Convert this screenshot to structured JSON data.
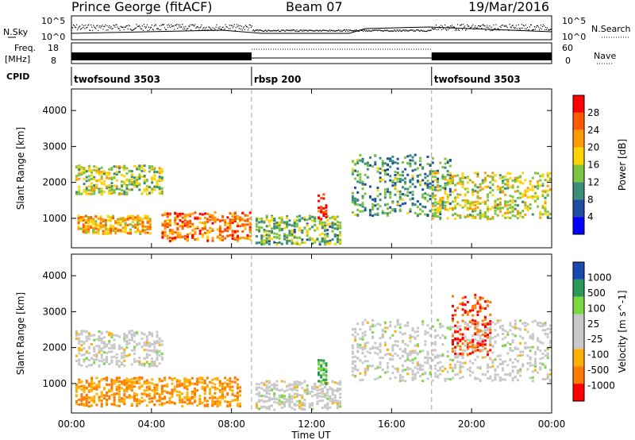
{
  "header": {
    "station": "Prince George (fitACF)",
    "beam": "Beam 07",
    "date": "19/Mar/2016"
  },
  "sky_panel": {
    "left_label": "N.Sky",
    "left_ticks": [
      "10^5",
      "10^0"
    ],
    "right_label": "N.Search",
    "right_ticks": [
      "10^5",
      "10^0"
    ]
  },
  "freq_panel": {
    "left_label_line1": "Freq.",
    "left_label_line2": "[MHz]",
    "left_ticks": [
      "18",
      "8"
    ],
    "right_label": "Nave",
    "right_ticks": [
      "60",
      "0"
    ]
  },
  "cpid_panel": {
    "label": "CPID",
    "segments": [
      {
        "name": "twofsound 3503",
        "start_hour": 0,
        "end_hour": 9
      },
      {
        "name": "rbsp 200",
        "start_hour": 9,
        "end_hour": 18
      },
      {
        "name": "twofsound 3503",
        "start_hour": 18,
        "end_hour": 24
      }
    ]
  },
  "colors": {
    "power_scale": [
      "#0000ff",
      "#1e4fa0",
      "#3a8e7a",
      "#7cc440",
      "#ffd400",
      "#ff9a00",
      "#ff5a00",
      "#ff0000"
    ],
    "velocity_scale": [
      "#ff0000",
      "#ff7a00",
      "#ffb000",
      "#c8c8c8",
      "#c8c8c8",
      "#7ad840",
      "#2a9a5a",
      "#1a4ab0"
    ],
    "divider": "#a0a0a0"
  },
  "chart_data": [
    {
      "type": "heatmap",
      "title": "",
      "xlabel": "",
      "ylabel": "Slant Range [km]",
      "xlim": [
        0,
        24
      ],
      "ylim": [
        180,
        4600
      ],
      "x_ticks": [
        "00:00",
        "04:00",
        "08:00",
        "12:00",
        "16:00",
        "20:00",
        "00:00"
      ],
      "y_ticks": [
        1000,
        2000,
        3000,
        4000
      ],
      "colorbar": {
        "label": "Power [dB]",
        "ticks": [
          4,
          8,
          12,
          16,
          20,
          24,
          28
        ],
        "range": [
          0,
          30
        ]
      },
      "features": [
        {
          "start_hour": 0.2,
          "end_hour": 4.6,
          "range_start_km": 1700,
          "range_end_km": 2500,
          "power_db": 15
        },
        {
          "start_hour": 0.3,
          "end_hour": 4.0,
          "range_start_km": 600,
          "range_end_km": 1100,
          "power_db": 20
        },
        {
          "start_hour": 4.5,
          "end_hour": 9.0,
          "range_start_km": 400,
          "range_end_km": 1200,
          "power_db": 24
        },
        {
          "start_hour": 9.2,
          "end_hour": 13.5,
          "range_start_km": 300,
          "range_end_km": 1100,
          "power_db": 12
        },
        {
          "start_hour": 12.3,
          "end_hour": 12.8,
          "range_start_km": 1000,
          "range_end_km": 1700,
          "power_db": 28
        },
        {
          "start_hour": 14.0,
          "end_hour": 19.0,
          "range_start_km": 1100,
          "range_end_km": 2800,
          "power_db": 10
        },
        {
          "start_hour": 18.0,
          "end_hour": 24.0,
          "range_start_km": 1000,
          "range_end_km": 2300,
          "power_db": 16
        }
      ]
    },
    {
      "type": "heatmap",
      "title": "",
      "xlabel": "Time UT",
      "ylabel": "Slant Range [km]",
      "xlim": [
        0,
        24
      ],
      "ylim": [
        180,
        4600
      ],
      "x_ticks": [
        "00:00",
        "04:00",
        "08:00",
        "12:00",
        "16:00",
        "20:00",
        "00:00"
      ],
      "y_ticks": [
        1000,
        2000,
        3000,
        4000
      ],
      "colorbar": {
        "label": "Velocity [m s^-1]",
        "ticks": [
          -1000,
          -500,
          -100,
          -25,
          25,
          100,
          500,
          1000
        ]
      },
      "features": [
        {
          "start_hour": 0.2,
          "end_hour": 4.6,
          "range_start_km": 1500,
          "range_end_km": 2500,
          "velocity": 0
        },
        {
          "start_hour": 0.2,
          "end_hour": 8.5,
          "range_start_km": 400,
          "range_end_km": 1200,
          "velocity": -300
        },
        {
          "start_hour": 9.2,
          "end_hour": 13.5,
          "range_start_km": 300,
          "range_end_km": 1100,
          "velocity": 0
        },
        {
          "start_hour": 12.3,
          "end_hour": 12.8,
          "range_start_km": 1000,
          "range_end_km": 1700,
          "velocity": 100
        },
        {
          "start_hour": 14.0,
          "end_hour": 24.0,
          "range_start_km": 1100,
          "range_end_km": 2800,
          "velocity": 0
        },
        {
          "start_hour": 19.0,
          "end_hour": 21.0,
          "range_start_km": 1800,
          "range_end_km": 3500,
          "velocity": -500
        }
      ]
    }
  ]
}
